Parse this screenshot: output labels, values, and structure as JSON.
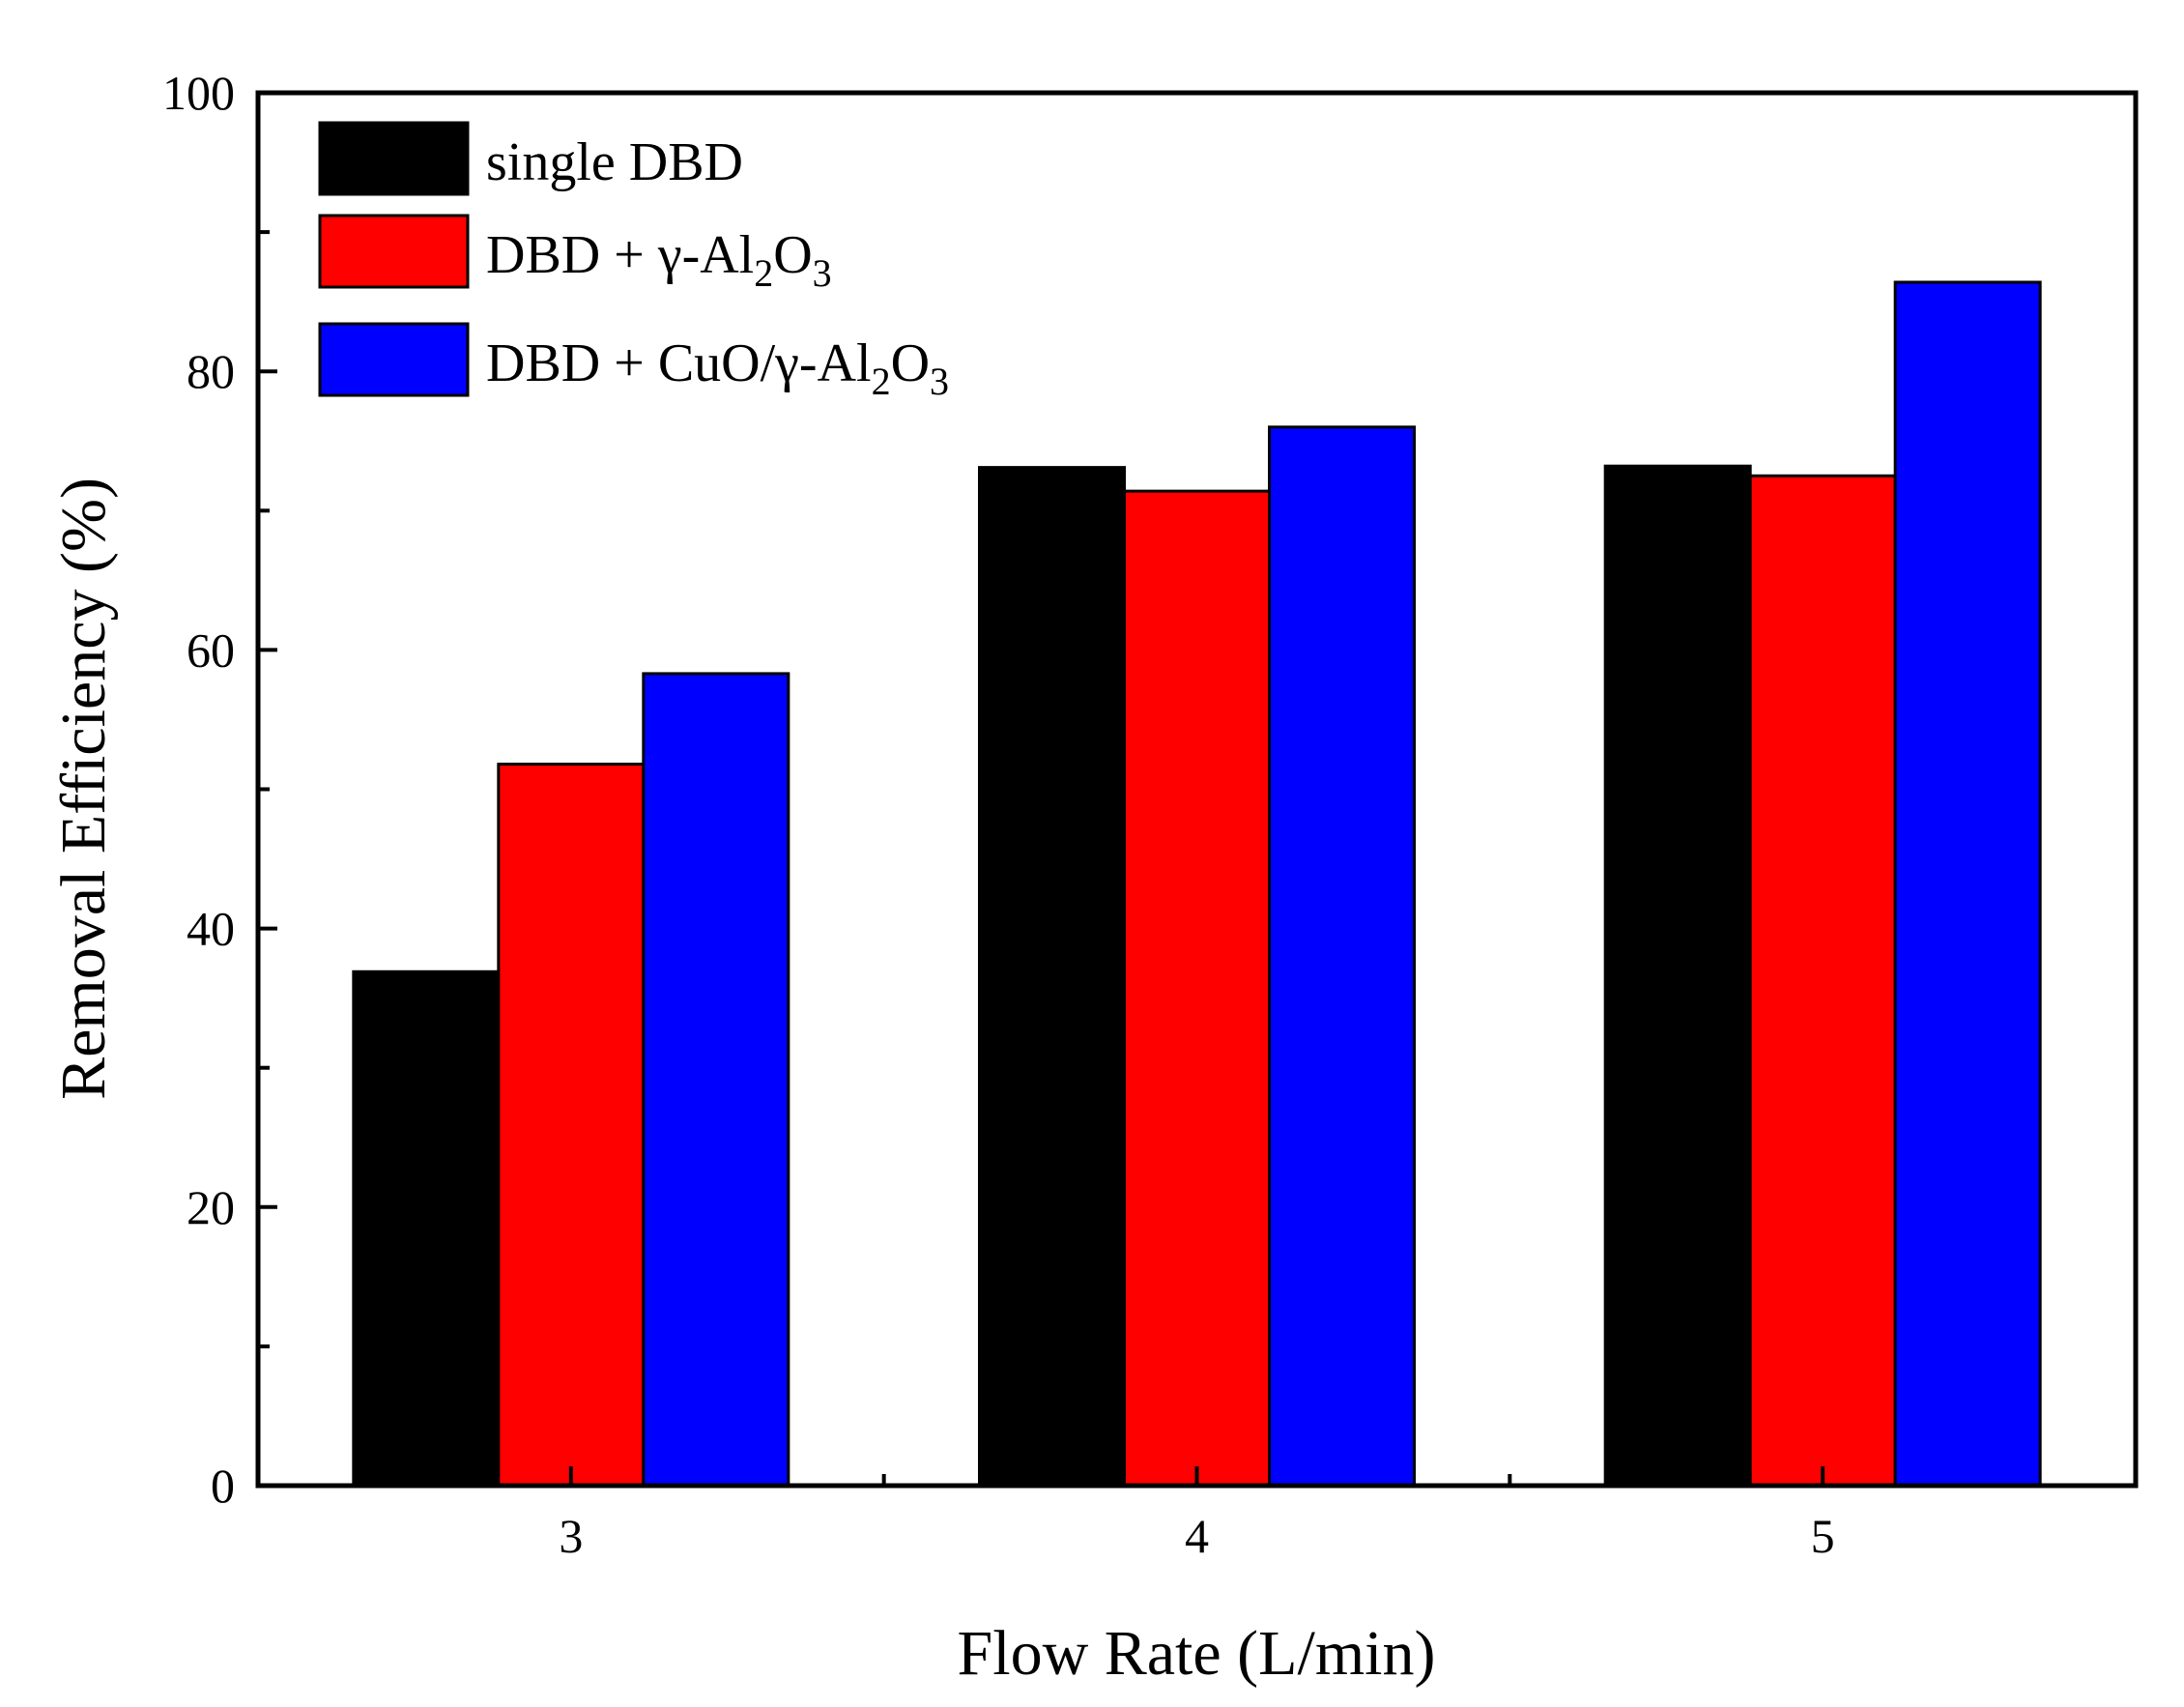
{
  "chart_data": {
    "type": "bar",
    "title": "",
    "xlabel": "Flow Rate (L/min)",
    "ylabel": "Removal Efficiency (%)",
    "categories": [
      "3",
      "4",
      "5"
    ],
    "ylim": [
      0,
      100
    ],
    "yticks": [
      0,
      20,
      40,
      60,
      80,
      100
    ],
    "y_minor_ticks": [
      10,
      30,
      50,
      70,
      90
    ],
    "grid": false,
    "legend_position": "top-left",
    "series": [
      {
        "name": "single DBD",
        "legend_parts": [
          "single DBD"
        ],
        "color": "#000000",
        "values": [
          36.9,
          73.1,
          73.2
        ]
      },
      {
        "name": "DBD + γ-Al2O3",
        "legend_parts": [
          "DBD + γ-Al",
          "2",
          "O",
          "3"
        ],
        "color": "#ff0000",
        "values": [
          51.8,
          71.4,
          72.5
        ]
      },
      {
        "name": "DBD + CuO/γ-Al2O3",
        "legend_parts": [
          "DBD + CuO/γ-Al",
          "2",
          "O",
          "3"
        ],
        "color": "#0000ff",
        "values": [
          58.3,
          76.0,
          86.4
        ]
      }
    ]
  }
}
